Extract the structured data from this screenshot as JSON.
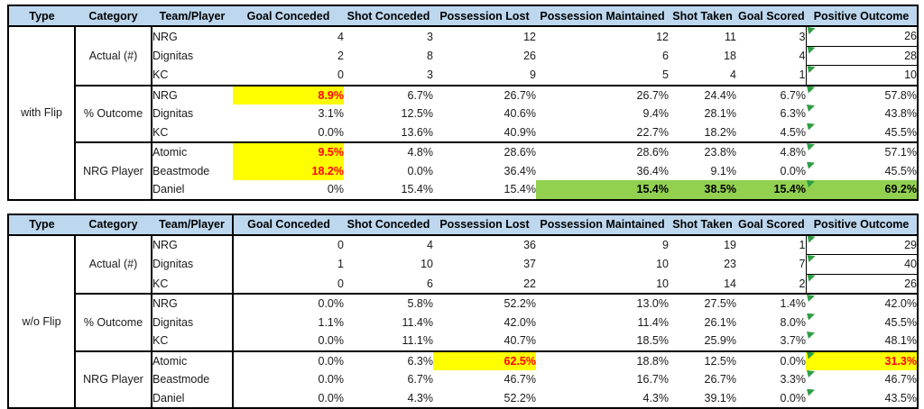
{
  "columns": [
    "Type",
    "Category",
    "Team/Player",
    "Goal Conceded",
    "Shot Conceded",
    "Possession Lost",
    "Possession Maintained",
    "Shot Taken",
    "Goal Scored",
    "Positive Outcome"
  ],
  "colors": {
    "header_bg": "#BDD7EE",
    "yellow_highlight": "#FFFF00",
    "red_highlight_text": "#FF0000",
    "green_highlight": "#92D050",
    "flag_green": "#2E9E44",
    "border": "#000000"
  },
  "icons": {
    "positive_outcome_flag": "error-flag-icon"
  },
  "tables": [
    {
      "id": "with-flip",
      "type_label": "with Flip",
      "team_divider": false,
      "groups": [
        {
          "category": "Actual (#)",
          "rows": [
            {
              "team": "NRG",
              "values": [
                "4",
                "3",
                "12",
                "12",
                "11",
                "3",
                "26"
              ]
            },
            {
              "team": "Dignitas",
              "values": [
                "2",
                "8",
                "26",
                "6",
                "18",
                "4",
                "28"
              ]
            },
            {
              "team": "KC",
              "values": [
                "0",
                "3",
                "9",
                "5",
                "4",
                "1",
                "10"
              ]
            }
          ]
        },
        {
          "category": "% Outcome",
          "rows": [
            {
              "team": "NRG",
              "values": [
                "8.9%",
                "6.7%",
                "26.7%",
                "26.7%",
                "24.4%",
                "6.7%",
                "57.8%"
              ],
              "yellow": [
                0
              ]
            },
            {
              "team": "Dignitas",
              "values": [
                "3.1%",
                "12.5%",
                "40.6%",
                "9.4%",
                "28.1%",
                "6.3%",
                "43.8%"
              ]
            },
            {
              "team": "KC",
              "values": [
                "0.0%",
                "13.6%",
                "40.9%",
                "22.7%",
                "18.2%",
                "4.5%",
                "45.5%"
              ]
            }
          ]
        },
        {
          "category": "NRG Player",
          "rows": [
            {
              "team": "Atomic",
              "values": [
                "9.5%",
                "4.8%",
                "28.6%",
                "28.6%",
                "23.8%",
                "4.8%",
                "57.1%"
              ],
              "yellow": [
                0
              ]
            },
            {
              "team": "Beastmode",
              "values": [
                "18.2%",
                "0.0%",
                "36.4%",
                "36.4%",
                "9.1%",
                "0.0%",
                "45.5%"
              ],
              "yellow": [
                0
              ]
            },
            {
              "team": "Daniel",
              "values": [
                "0%",
                "15.4%",
                "15.4%",
                "15.4%",
                "38.5%",
                "15.4%",
                "69.2%"
              ],
              "green": [
                3,
                4,
                5,
                6
              ]
            }
          ]
        }
      ]
    },
    {
      "id": "wo-flip",
      "type_label": "w/o Flip",
      "team_divider": true,
      "groups": [
        {
          "category": "Actual (#)",
          "rows": [
            {
              "team": "NRG",
              "values": [
                "0",
                "4",
                "36",
                "9",
                "19",
                "1",
                "29"
              ]
            },
            {
              "team": "Dignitas",
              "values": [
                "1",
                "10",
                "37",
                "10",
                "23",
                "7",
                "40"
              ]
            },
            {
              "team": "KC",
              "values": [
                "0",
                "6",
                "22",
                "10",
                "14",
                "2",
                "26"
              ]
            }
          ]
        },
        {
          "category": "% Outcome",
          "rows": [
            {
              "team": "NRG",
              "values": [
                "0.0%",
                "5.8%",
                "52.2%",
                "13.0%",
                "27.5%",
                "1.4%",
                "42.0%"
              ]
            },
            {
              "team": "Dignitas",
              "values": [
                "1.1%",
                "11.4%",
                "42.0%",
                "11.4%",
                "26.1%",
                "8.0%",
                "45.5%"
              ]
            },
            {
              "team": "KC",
              "values": [
                "0.0%",
                "11.1%",
                "40.7%",
                "18.5%",
                "25.9%",
                "3.7%",
                "48.1%"
              ]
            }
          ]
        },
        {
          "category": "NRG Player",
          "rows": [
            {
              "team": "Atomic",
              "values": [
                "0.0%",
                "6.3%",
                "62.5%",
                "18.8%",
                "12.5%",
                "0.0%",
                "31.3%"
              ],
              "yellow": [
                2,
                6
              ]
            },
            {
              "team": "Beastmode",
              "values": [
                "0.0%",
                "6.7%",
                "46.7%",
                "16.7%",
                "26.7%",
                "3.3%",
                "46.7%"
              ]
            },
            {
              "team": "Daniel",
              "values": [
                "0.0%",
                "4.3%",
                "52.2%",
                "4.3%",
                "39.1%",
                "0.0%",
                "43.5%"
              ]
            }
          ]
        }
      ]
    }
  ]
}
